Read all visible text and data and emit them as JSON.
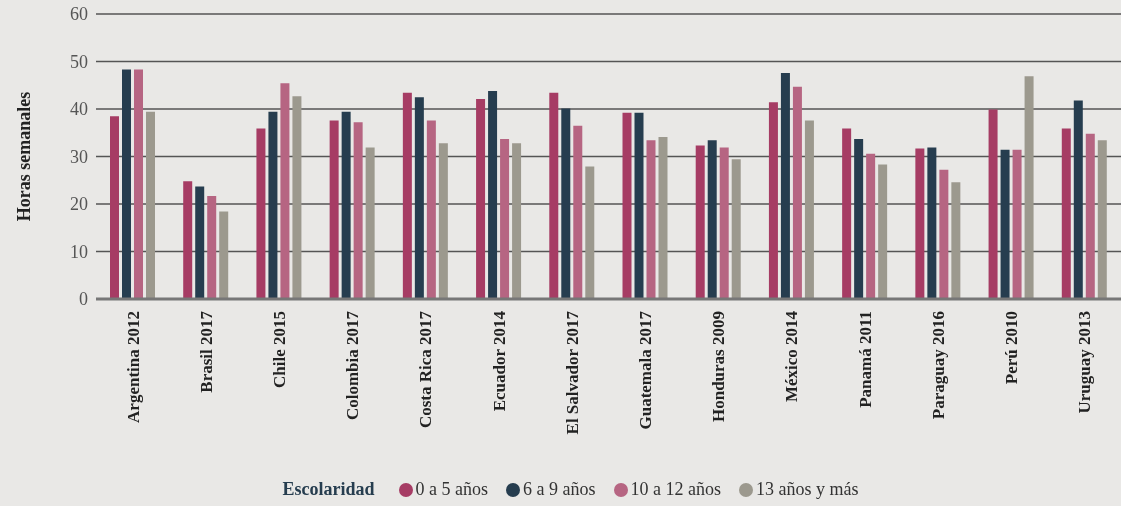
{
  "chart_data": {
    "type": "bar",
    "ylabel": "Horas semanales",
    "legend_title": "Escolaridad",
    "legend": "bottom",
    "grid": "y",
    "ylim": [
      0,
      60
    ],
    "yticks": [
      0,
      10,
      20,
      30,
      40,
      50,
      60
    ],
    "categories": [
      "Argentina 2012",
      "Brasil 2017",
      "Chile 2015",
      "Colombia 2017",
      "Costa Rica 2017",
      "Ecuador 2014",
      "El Salvador 2017",
      "Guatemala 2017",
      "Honduras 2009",
      "México 2014",
      "Panamá 2011",
      "Paraguay 2016",
      "Perú 2010",
      "Uruguay 2013"
    ],
    "series": [
      {
        "name": "0 a 5 años",
        "color": "#a63c64",
        "values": [
          38.5,
          24.8,
          35.9,
          37.6,
          43.4,
          42.1,
          43.4,
          39.2,
          32.3,
          41.4,
          35.9,
          31.7,
          39.9,
          35.9
        ]
      },
      {
        "name": "6 a 9 años",
        "color": "#263d4f",
        "values": [
          48.3,
          23.7,
          39.4,
          39.4,
          42.5,
          43.8,
          40.1,
          39.2,
          33.4,
          47.6,
          33.7,
          31.9,
          31.4,
          41.8
        ]
      },
      {
        "name": "10 a 12 años",
        "color": "#b66582",
        "values": [
          48.3,
          21.7,
          45.4,
          37.2,
          37.6,
          33.7,
          36.5,
          33.4,
          31.9,
          44.7,
          30.6,
          27.2,
          31.4,
          34.8
        ]
      },
      {
        "name": "13 años y más",
        "color": "#9c998e",
        "values": [
          39.4,
          18.4,
          42.7,
          31.9,
          32.8,
          32.8,
          27.9,
          34.1,
          29.4,
          37.6,
          28.3,
          24.6,
          46.9,
          33.4
        ]
      }
    ]
  }
}
